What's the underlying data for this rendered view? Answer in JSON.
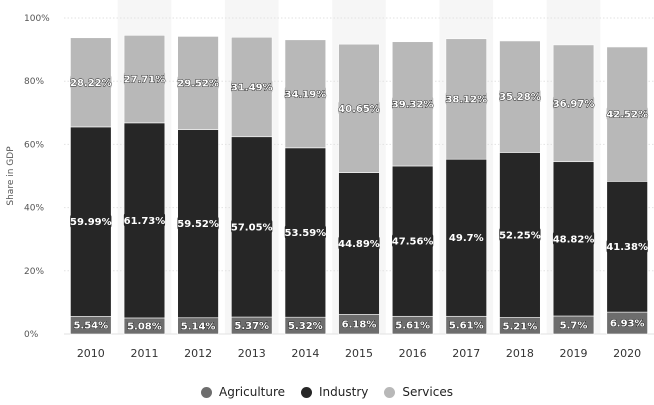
{
  "chart_data": {
    "type": "bar",
    "stacked": true,
    "ylabel": "Share in GDP",
    "ylim": [
      0,
      100
    ],
    "yticks": [
      "0%",
      "20%",
      "40%",
      "60%",
      "80%",
      "100%"
    ],
    "categories": [
      "2010",
      "2011",
      "2012",
      "2013",
      "2014",
      "2015",
      "2016",
      "2017",
      "2018",
      "2019",
      "2020"
    ],
    "series": [
      {
        "name": "Agriculture",
        "color": "#6d6d6d",
        "values": [
          5.54,
          5.08,
          5.14,
          5.37,
          5.32,
          6.18,
          5.61,
          5.61,
          5.21,
          5.7,
          6.93
        ],
        "labels": [
          "5.54%",
          "5.08%",
          "5.14%",
          "5.37%",
          "5.32%",
          "6.18%",
          "5.61%",
          "5.61%",
          "5.21%",
          "5.7%",
          "6.93%"
        ]
      },
      {
        "name": "Industry",
        "color": "#262626",
        "values": [
          59.99,
          61.73,
          59.52,
          57.05,
          53.59,
          44.89,
          47.56,
          49.7,
          52.25,
          48.82,
          41.38
        ],
        "labels": [
          "59.99%",
          "61.73%",
          "59.52%",
          "57.05%",
          "53.59%",
          "44.89%",
          "47.56%",
          "49.7%",
          "52.25%",
          "48.82%",
          "41.38%"
        ]
      },
      {
        "name": "Services",
        "color": "#b8b8b8",
        "values": [
          28.22,
          27.71,
          29.52,
          31.49,
          34.19,
          40.65,
          39.32,
          38.12,
          35.28,
          36.97,
          42.52
        ],
        "labels": [
          "28.22%",
          "27.71%",
          "29.52%",
          "31.49%",
          "34.19%",
          "40.65%",
          "39.32%",
          "38.12%",
          "35.28%",
          "36.97%",
          "42.52%"
        ]
      }
    ],
    "grid": true,
    "legend_position": "bottom-center"
  },
  "legend": {
    "items": [
      {
        "label": "Agriculture",
        "color": "#6d6d6d"
      },
      {
        "label": "Industry",
        "color": "#262626"
      },
      {
        "label": "Services",
        "color": "#b8b8b8"
      }
    ]
  }
}
